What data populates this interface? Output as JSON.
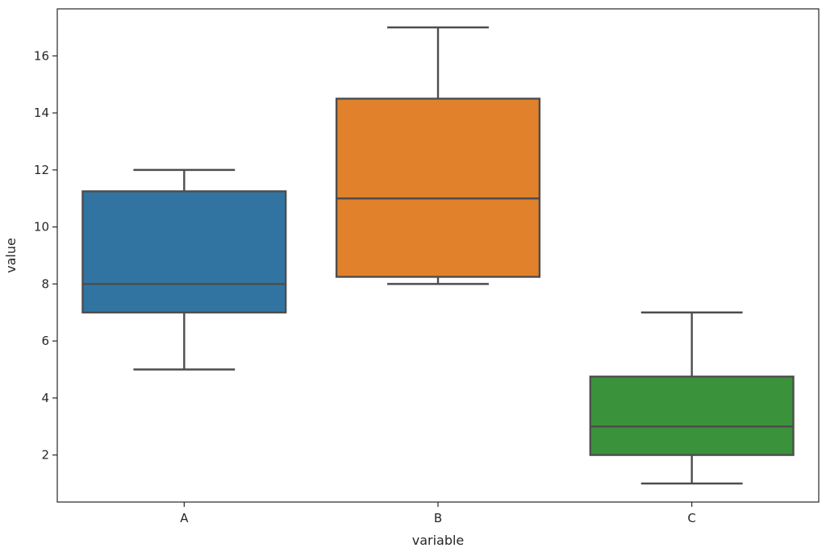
{
  "chart_data": {
    "type": "box",
    "xlabel": "variable",
    "ylabel": "value",
    "ylim": [
      0.35,
      17.65
    ],
    "yticks": [
      2,
      4,
      6,
      8,
      10,
      12,
      14,
      16
    ],
    "categories": [
      "A",
      "B",
      "C"
    ],
    "grid": false,
    "boxes": [
      {
        "category": "A",
        "whisker_low": 5,
        "q1": 7,
        "median": 8,
        "q3": 11.25,
        "whisker_high": 12,
        "color": "#3274a1"
      },
      {
        "category": "B",
        "whisker_low": 8,
        "q1": 8.25,
        "median": 11,
        "q3": 14.5,
        "whisker_high": 17,
        "color": "#e1812c"
      },
      {
        "category": "C",
        "whisker_low": 1,
        "q1": 2,
        "median": 3,
        "q3": 4.75,
        "whisker_high": 7,
        "color": "#3a923a"
      }
    ],
    "line_color": "#4d4d4d",
    "frame_color": "#262626"
  }
}
